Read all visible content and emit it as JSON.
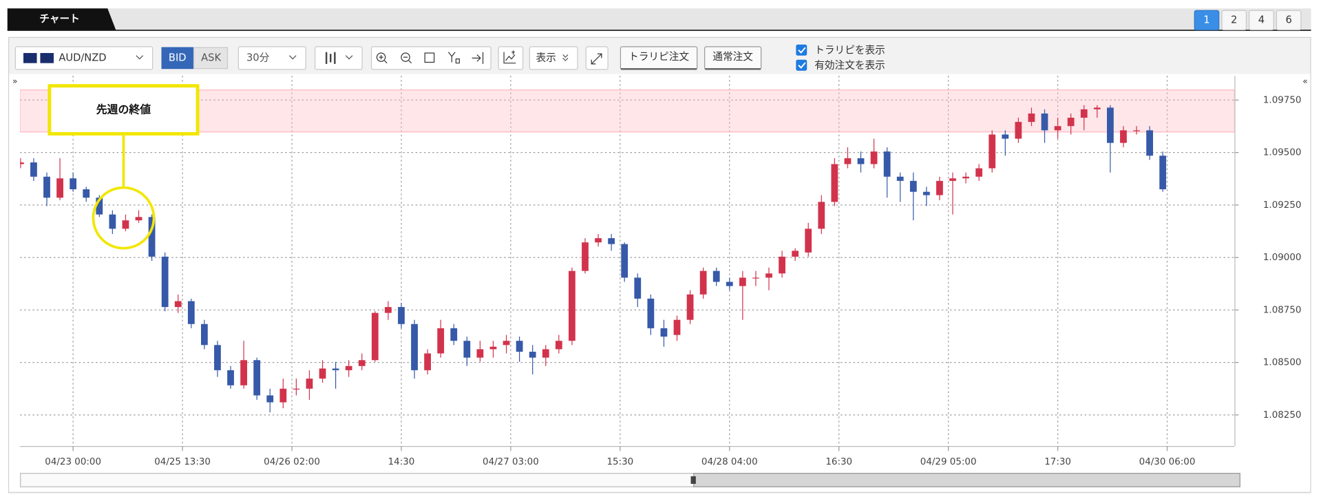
{
  "header": {
    "title": "チャート",
    "tabs": [
      "1",
      "2",
      "4",
      "6"
    ]
  },
  "toolbar": {
    "symbol": "AUD/NZD",
    "bid": "BID",
    "ask": "ASK",
    "timeframe": "30分",
    "display": "表示",
    "buttons": [
      "トラリピ注文",
      "通常注文"
    ],
    "checkboxes": [
      "トラリピを表示",
      "有効注文を表示"
    ]
  },
  "chart_data": {
    "type": "candlestick",
    "annotation": "先週の終値",
    "up_color": "#d2334c",
    "down_color": "#3659a8",
    "highlight_band": {
      "from": 1.09598,
      "to": 1.09798,
      "color": "#ffb6c1"
    },
    "grid": true,
    "xlim": [
      -0.04,
      92.46
    ],
    "xticks": [
      {
        "value": 4,
        "label": "04/23 00:00"
      },
      {
        "value": 12.333,
        "label": "04/25 13:30"
      },
      {
        "value": 20.667,
        "label": "04/26 02:00"
      },
      {
        "value": 29,
        "label": "14:30"
      },
      {
        "value": 37.333,
        "label": "04/27 03:00"
      },
      {
        "value": 45.667,
        "label": "15:30"
      },
      {
        "value": 54,
        "label": "04/28 04:00"
      },
      {
        "value": 62.333,
        "label": "16:30"
      },
      {
        "value": 70.667,
        "label": "04/29 05:00"
      },
      {
        "value": 79,
        "label": "17:30"
      },
      {
        "value": 87.333,
        "label": "04/30 06:00"
      }
    ],
    "ylim": [
      1.08102,
      1.09866
    ],
    "yticks": [
      {
        "value": 1.0975,
        "label": "1.09750"
      },
      {
        "value": 1.095,
        "label": "1.09500"
      },
      {
        "value": 1.0925,
        "label": "1.09250"
      },
      {
        "value": 1.09,
        "label": "1.09000"
      },
      {
        "value": 1.0875,
        "label": "1.08750"
      },
      {
        "value": 1.085,
        "label": "1.08500"
      },
      {
        "value": 1.0825,
        "label": "1.08250"
      }
    ],
    "open": [
      1.09445,
      1.09453,
      1.09385,
      1.09285,
      1.09377,
      1.09325,
      1.09285,
      1.09205,
      1.09137,
      1.09177,
      1.09193,
      1.09004,
      1.08764,
      1.08792,
      1.08683,
      1.08583,
      1.08463,
      1.08391,
      1.08511,
      1.08343,
      1.0831,
      1.08375,
      1.08375,
      1.08423,
      1.08471,
      1.08463,
      1.08483,
      1.08511,
      1.08736,
      1.08764,
      1.08683,
      1.08463,
      1.08543,
      1.08663,
      1.08603,
      1.08523,
      1.08563,
      1.08583,
      1.08603,
      1.08551,
      1.08523,
      1.08563,
      1.08603,
      1.08936,
      1.09072,
      1.09092,
      1.09064,
      1.08904,
      1.08804,
      1.08663,
      1.08631,
      1.08703,
      1.08824,
      1.08936,
      1.08884,
      1.08864,
      1.08904,
      1.08904,
      1.08924,
      1.09004,
      1.09024,
      1.09137,
      1.09265,
      1.09445,
      1.09473,
      1.09445,
      1.09505,
      1.09385,
      1.09365,
      1.09313,
      1.09297,
      1.09365,
      1.09377,
      1.09385,
      1.09425,
      1.09586,
      1.09566,
      1.09646,
      1.09686,
      1.09606,
      1.09626,
      1.09666,
      1.09706,
      1.09714,
      1.09546,
      1.09606,
      1.09606,
      1.09485
    ],
    "high": [
      1.09473,
      1.09473,
      1.09405,
      1.09473,
      1.09405,
      1.09337,
      1.09297,
      1.09225,
      1.09205,
      1.09225,
      1.09205,
      1.09024,
      1.08824,
      1.08804,
      1.08703,
      1.08603,
      1.08483,
      1.08603,
      1.08523,
      1.08375,
      1.08423,
      1.08423,
      1.08463,
      1.08511,
      1.08503,
      1.08511,
      1.08543,
      1.08744,
      1.08792,
      1.08784,
      1.08703,
      1.08563,
      1.08703,
      1.08683,
      1.08623,
      1.08603,
      1.08603,
      1.08631,
      1.08623,
      1.08583,
      1.08583,
      1.08631,
      1.08952,
      1.09092,
      1.09112,
      1.09112,
      1.09072,
      1.08924,
      1.08824,
      1.08703,
      1.08723,
      1.08844,
      1.08952,
      1.08952,
      1.08904,
      1.08936,
      1.08936,
      1.08952,
      1.09032,
      1.09044,
      1.09165,
      1.09297,
      1.09473,
      1.09525,
      1.09505,
      1.09566,
      1.09525,
      1.09405,
      1.09405,
      1.09337,
      1.09385,
      1.09405,
      1.09405,
      1.09445,
      1.09606,
      1.09606,
      1.09666,
      1.09714,
      1.09706,
      1.09666,
      1.09686,
      1.09726,
      1.09726,
      1.09726,
      1.09626,
      1.09626,
      1.09626,
      1.09505
    ],
    "low": [
      1.09425,
      1.09365,
      1.09245,
      1.09273,
      1.09313,
      1.09265,
      1.09193,
      1.09112,
      1.09125,
      1.09165,
      1.08984,
      1.08744,
      1.08736,
      1.08663,
      1.08563,
      1.08431,
      1.08375,
      1.08375,
      1.08322,
      1.08262,
      1.08282,
      1.08343,
      1.08322,
      1.08403,
      1.08375,
      1.08431,
      1.08463,
      1.08503,
      1.08703,
      1.08663,
      1.08423,
      1.08443,
      1.08523,
      1.08583,
      1.08483,
      1.08503,
      1.08523,
      1.08543,
      1.08503,
      1.08443,
      1.08483,
      1.08543,
      1.08583,
      1.08924,
      1.09052,
      1.09032,
      1.08884,
      1.08764,
      1.08631,
      1.08575,
      1.08603,
      1.08683,
      1.08804,
      1.08864,
      1.08844,
      1.08703,
      1.08864,
      1.08844,
      1.08904,
      1.08984,
      1.09004,
      1.09112,
      1.09245,
      1.09425,
      1.09405,
      1.09425,
      1.09285,
      1.09265,
      1.09177,
      1.09245,
      1.09273,
      1.09205,
      1.09353,
      1.09365,
      1.09405,
      1.09485,
      1.09546,
      1.09626,
      1.09546,
      1.09566,
      1.09586,
      1.09606,
      1.09666,
      1.09405,
      1.09525,
      1.09586,
      1.09465,
      1.09313
    ],
    "close": [
      1.09453,
      1.09385,
      1.09285,
      1.09377,
      1.09325,
      1.09285,
      1.09205,
      1.09137,
      1.09177,
      1.09193,
      1.09004,
      1.08764,
      1.08792,
      1.08683,
      1.08583,
      1.08463,
      1.08391,
      1.08511,
      1.08343,
      1.0831,
      1.08375,
      1.08375,
      1.08423,
      1.08471,
      1.08463,
      1.08483,
      1.08511,
      1.08736,
      1.08764,
      1.08683,
      1.08463,
      1.08543,
      1.08663,
      1.08603,
      1.08523,
      1.08563,
      1.08575,
      1.08603,
      1.08551,
      1.08523,
      1.08563,
      1.08603,
      1.08936,
      1.09072,
      1.09092,
      1.09064,
      1.08904,
      1.08804,
      1.08663,
      1.08623,
      1.08703,
      1.08824,
      1.08936,
      1.08884,
      1.08864,
      1.08904,
      1.08904,
      1.08924,
      1.09004,
      1.09032,
      1.09137,
      1.09265,
      1.09445,
      1.09473,
      1.09445,
      1.09505,
      1.09385,
      1.09365,
      1.09313,
      1.09297,
      1.09365,
      1.09377,
      1.09385,
      1.09425,
      1.09586,
      1.09566,
      1.09646,
      1.09686,
      1.09606,
      1.09626,
      1.09666,
      1.09706,
      1.09714,
      1.09546,
      1.09606,
      1.09606,
      1.09485,
      1.09325
    ]
  }
}
